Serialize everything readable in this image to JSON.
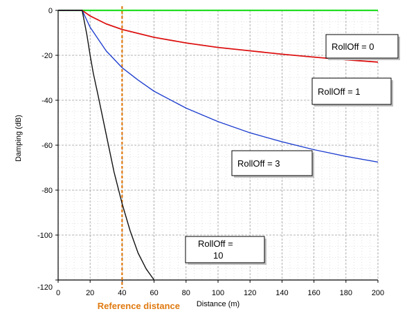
{
  "chart_data": {
    "type": "line",
    "title": "",
    "xlabel": "Distance  (m)",
    "ylabel": "Damping  (dB)",
    "xlim": [
      0,
      200
    ],
    "ylim": [
      -120,
      0
    ],
    "xticks": [
      0,
      20,
      40,
      60,
      80,
      100,
      120,
      140,
      160,
      180,
      200
    ],
    "yticks": [
      0,
      -20,
      -40,
      -60,
      -80,
      -100,
      -120
    ],
    "grid": "minor-dotted, major-solid",
    "reference_line": {
      "x": 40,
      "label": "Reference distance",
      "color": "#e07a10"
    },
    "series": [
      {
        "name": "RollOff = 0",
        "color": "#22dd22",
        "x": [
          0,
          15,
          200
        ],
        "y": [
          0,
          0,
          0
        ]
      },
      {
        "name": "RollOff = 1",
        "color": "#dd1111",
        "x": [
          0,
          15,
          20,
          30,
          40,
          60,
          80,
          100,
          120,
          140,
          160,
          180,
          200
        ],
        "y": [
          0,
          0,
          -2.5,
          -6,
          -8.5,
          -12,
          -14.5,
          -16.5,
          -18,
          -19.5,
          -20.8,
          -22,
          -23
        ]
      },
      {
        "name": "RollOff = 3",
        "color": "#1f3fcf",
        "x": [
          0,
          15,
          20,
          30,
          40,
          50,
          60,
          80,
          100,
          120,
          140,
          160,
          180,
          200
        ],
        "y": [
          0,
          0,
          -7.5,
          -18,
          -25.5,
          -31,
          -36,
          -43.5,
          -49.5,
          -54.5,
          -58.5,
          -62,
          -65,
          -67.5
        ]
      },
      {
        "name": "RollOff = 10",
        "color": "#111111",
        "x": [
          0,
          15,
          18,
          20,
          22,
          25,
          30,
          35,
          40,
          45,
          50,
          55,
          60
        ],
        "y": [
          0,
          0,
          -11,
          -20,
          -28,
          -38,
          -55,
          -72,
          -86,
          -98,
          -108,
          -115,
          -120
        ]
      }
    ],
    "labels": [
      {
        "text": "RollOff = 0",
        "series": 0
      },
      {
        "text": "RollOff = 1",
        "series": 1
      },
      {
        "text": "RollOff = 3",
        "series": 2
      },
      {
        "text": "RollOff =\n10",
        "series": 3
      }
    ]
  }
}
